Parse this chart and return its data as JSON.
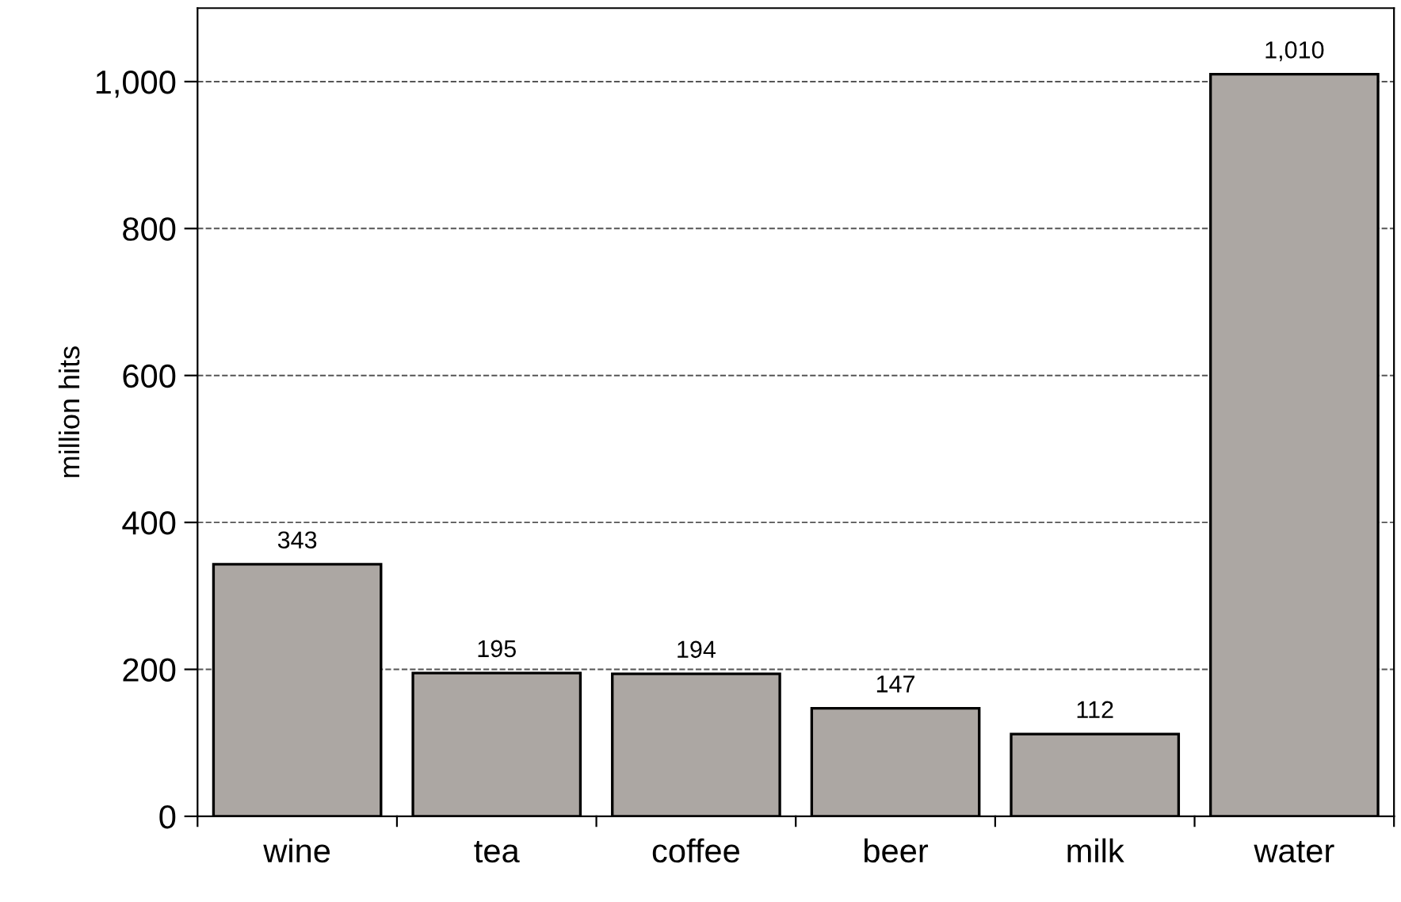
{
  "chart_data": {
    "type": "bar",
    "ylabel": "million hits",
    "categories": [
      "wine",
      "tea",
      "coffee",
      "beer",
      "milk",
      "water"
    ],
    "values": [
      343,
      195,
      194,
      147,
      112,
      1010
    ],
    "value_labels": [
      "343",
      "195",
      "194",
      "147",
      "112",
      "1,010"
    ],
    "color": "#aca7a3",
    "ylim": [
      0,
      1100
    ],
    "yticks": [
      0,
      200,
      400,
      600,
      800,
      {
        "value": 1000,
        "label": "1,000"
      }
    ],
    "grid": "y",
    "line_style": "dashed"
  }
}
